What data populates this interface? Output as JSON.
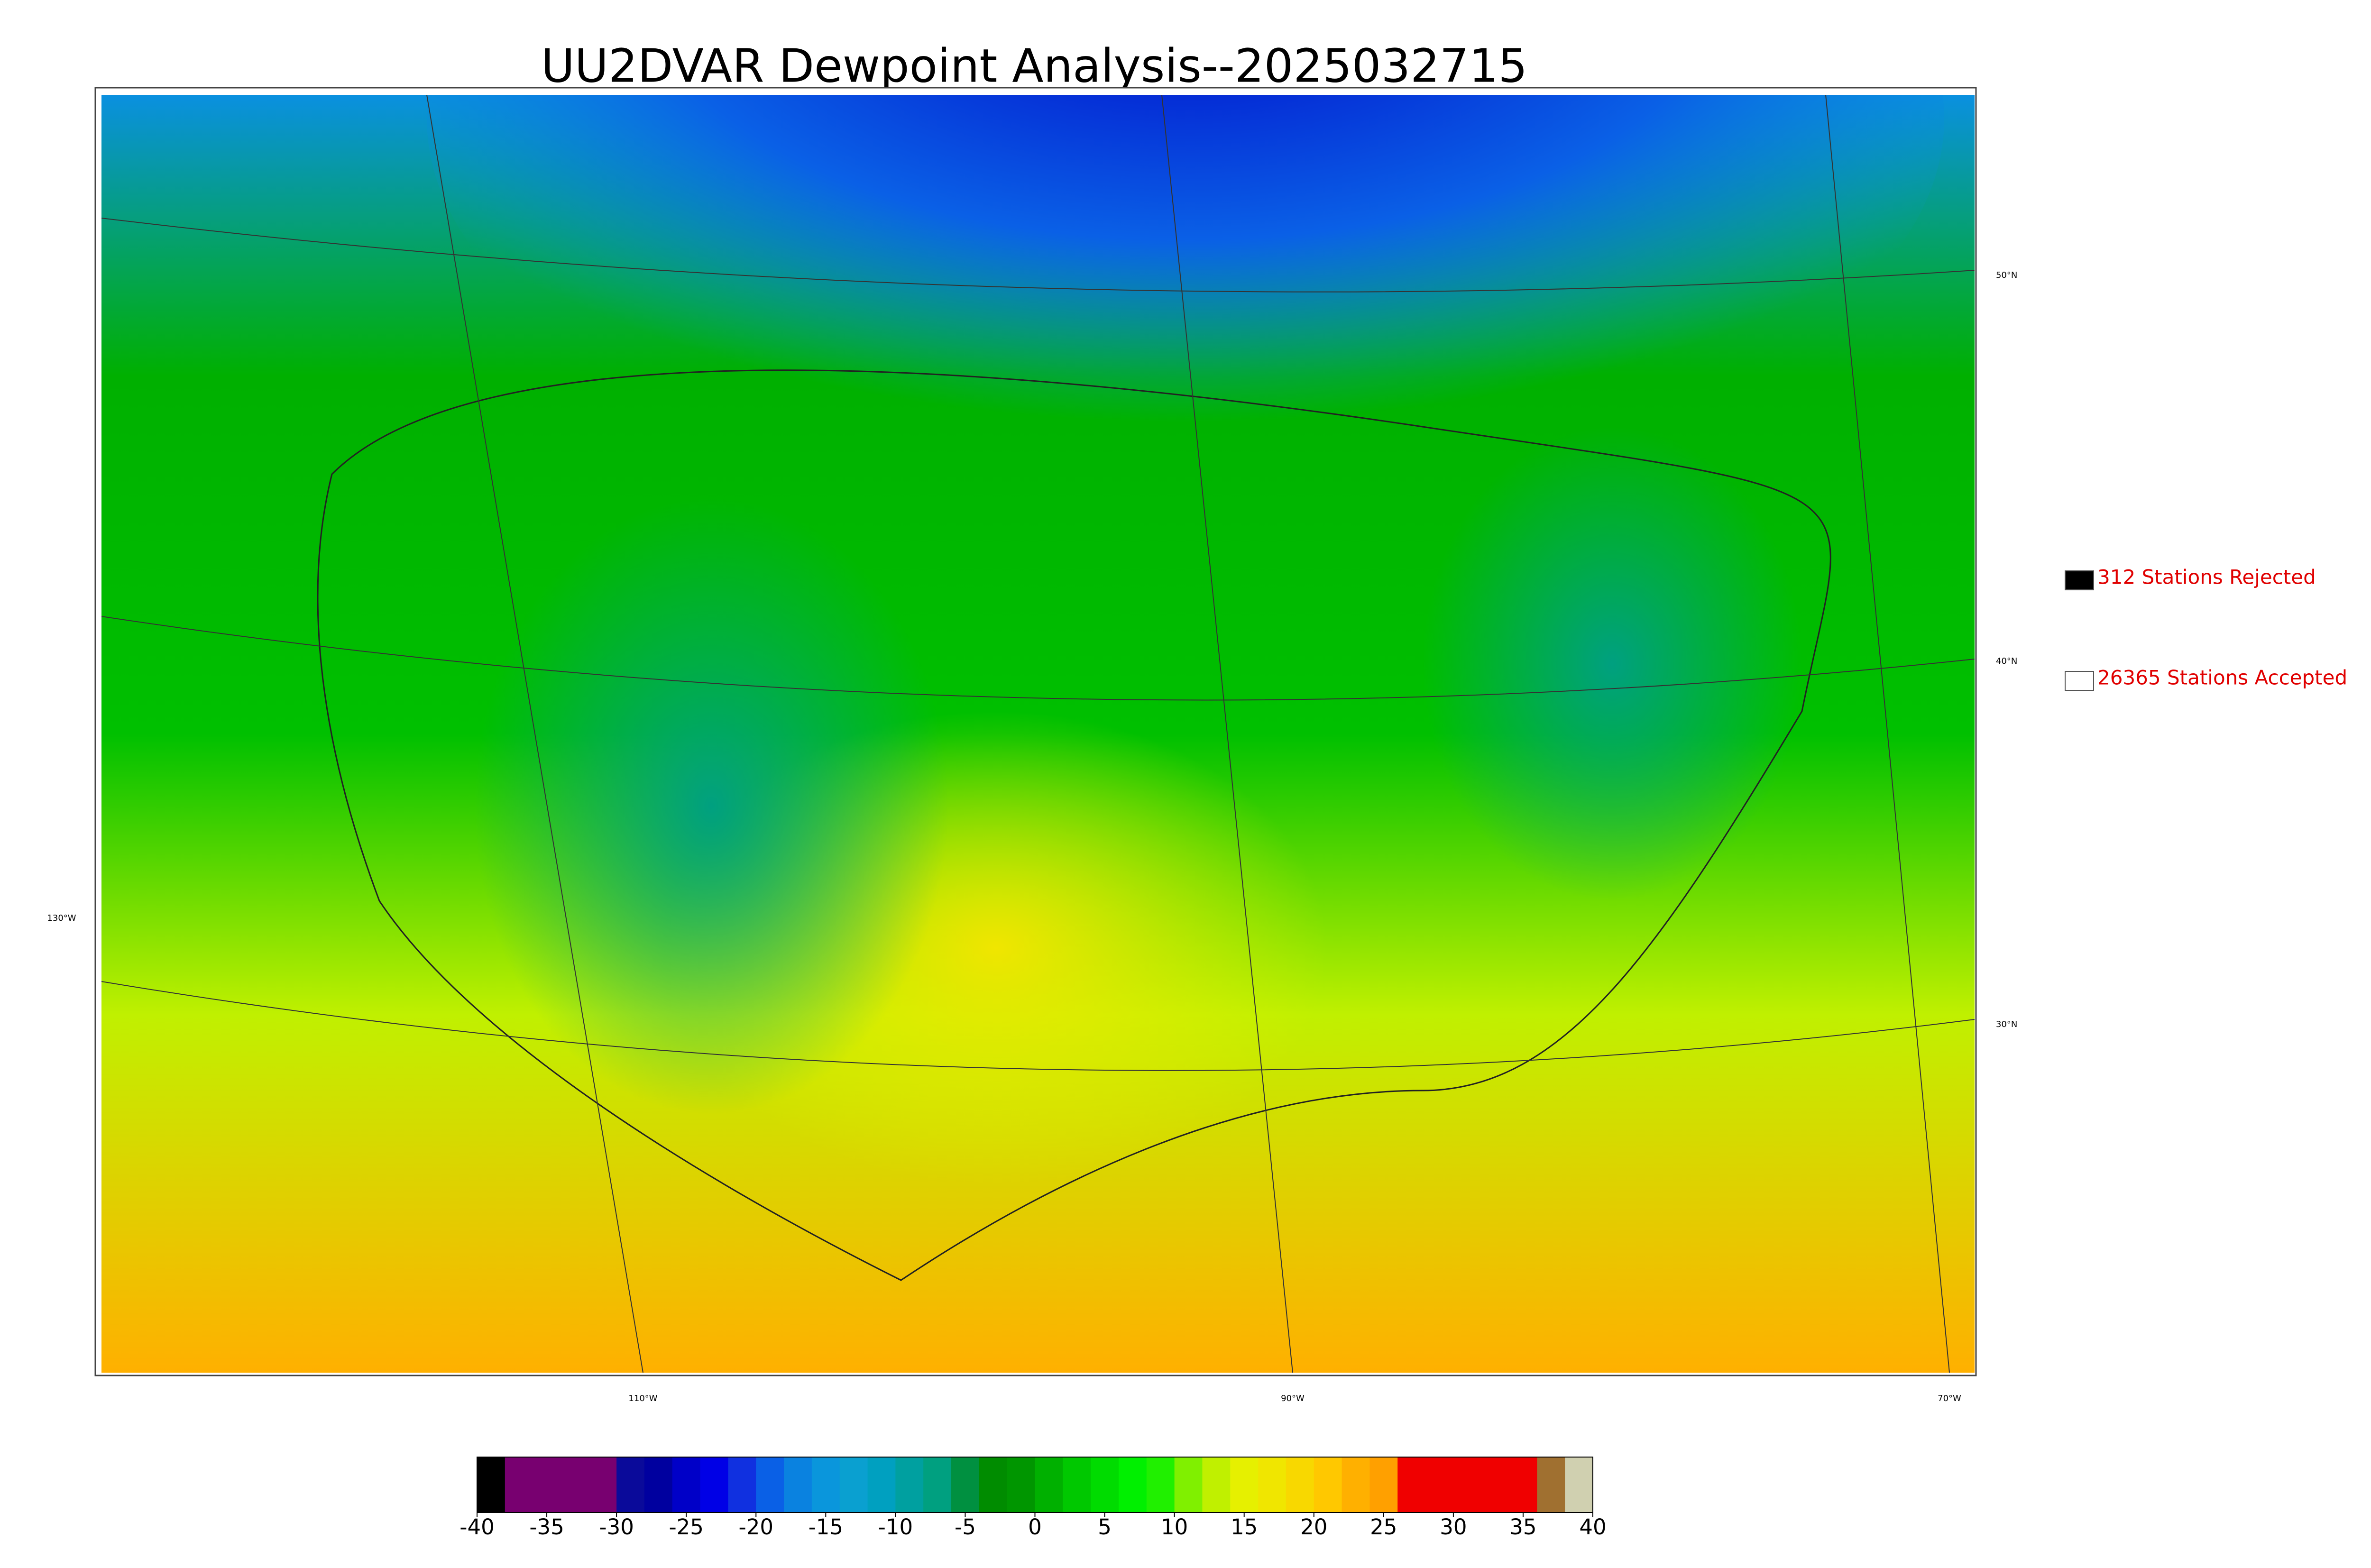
{
  "header": {
    "title": "UU2DVAR Dewpoint Analysis--2025032715"
  },
  "legend": [
    {
      "label": "312 Stations Rejected",
      "color": "#000000"
    },
    {
      "label": "26365 Stations Accepted",
      "color": "#ffffff"
    }
  ],
  "graticule": {
    "latitudes": [
      "50°N",
      "40°N",
      "30°N"
    ],
    "longitudes": [
      "130°W",
      "110°W",
      "90°W",
      "70°W"
    ]
  },
  "colorbar": {
    "range": [
      -40,
      40
    ],
    "ticks": [
      -40,
      -35,
      -30,
      -25,
      -20,
      -15,
      -10,
      -5,
      0,
      5,
      10,
      15,
      20,
      25,
      30,
      35,
      40
    ],
    "colors": [
      "#000000",
      "#780070",
      "#780070",
      "#780070",
      "#780070",
      "#0a0a9a",
      "#00009f",
      "#0000c8",
      "#0000e6",
      "#1030e0",
      "#0a60e6",
      "#0a82e0",
      "#0a96dc",
      "#0aa0d0",
      "#00a0c0",
      "#00a0a0",
      "#00a080",
      "#009040",
      "#008c00",
      "#009600",
      "#00b000",
      "#00c800",
      "#00dc00",
      "#00f000",
      "#20f000",
      "#80f000",
      "#c0f000",
      "#e6f000",
      "#f0e600",
      "#f8d800",
      "#ffc800",
      "#ffb000",
      "#ffa000",
      "#f00000",
      "#f00000",
      "#f00000",
      "#f00000",
      "#f00000",
      "#a07030",
      "#d0d0b0"
    ]
  }
}
